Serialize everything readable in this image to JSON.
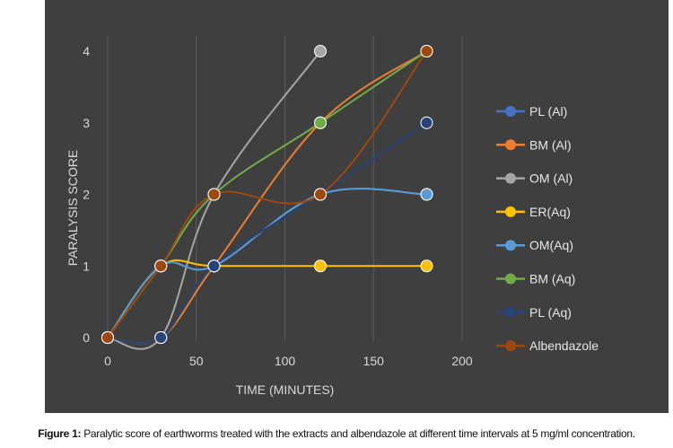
{
  "chart_data": {
    "type": "line",
    "xlabel": "TIME (MINUTES)",
    "ylabel": "PARALYSIS SCORE",
    "xlim": [
      0,
      200
    ],
    "ylim": [
      0,
      4
    ],
    "x_ticks": [
      0,
      50,
      100,
      150,
      200
    ],
    "y_ticks": [
      0,
      1,
      2,
      3,
      4
    ],
    "grid": "vertical",
    "legend_position": "right",
    "series": [
      {
        "name": "PL (Al)",
        "color": "#4472c4",
        "x": [
          0,
          30,
          60,
          120,
          180
        ],
        "y": [
          0,
          1,
          1,
          2,
          2
        ]
      },
      {
        "name": "BM (Al)",
        "color": "#ed7d31",
        "x": [
          0,
          30,
          60,
          120,
          180
        ],
        "y": [
          0,
          0,
          1,
          3,
          4
        ]
      },
      {
        "name": "OM (Al)",
        "color": "#a5a5a5",
        "x": [
          0,
          30,
          60,
          120
        ],
        "y": [
          0,
          0,
          2,
          4
        ]
      },
      {
        "name": "ER(Aq)",
        "color": "#ffc000",
        "x": [
          0,
          30,
          60,
          120,
          180
        ],
        "y": [
          0,
          1,
          1,
          1,
          1
        ]
      },
      {
        "name": "OM(Aq)",
        "color": "#5b9bd5",
        "x": [
          0,
          30,
          60,
          120,
          180
        ],
        "y": [
          0,
          1,
          1,
          2,
          2
        ]
      },
      {
        "name": "BM (Aq)",
        "color": "#70ad47",
        "x": [
          0,
          30,
          60,
          120,
          180
        ],
        "y": [
          0,
          1,
          2,
          3,
          4
        ]
      },
      {
        "name": "PL (Aq)",
        "color": "#264478",
        "x": [
          0,
          30,
          60,
          120,
          180
        ],
        "y": [
          0,
          0,
          1,
          2,
          3
        ]
      },
      {
        "name": "Albendazole",
        "color": "#9e480e",
        "x": [
          0,
          30,
          60,
          120,
          180
        ],
        "y": [
          0,
          1,
          2,
          2,
          4
        ]
      }
    ]
  },
  "caption": {
    "label": "Figure 1:",
    "text": " Paralytic score of earthworms treated with the extracts and albendazole at different time intervals at 5 mg/ml concentration."
  }
}
